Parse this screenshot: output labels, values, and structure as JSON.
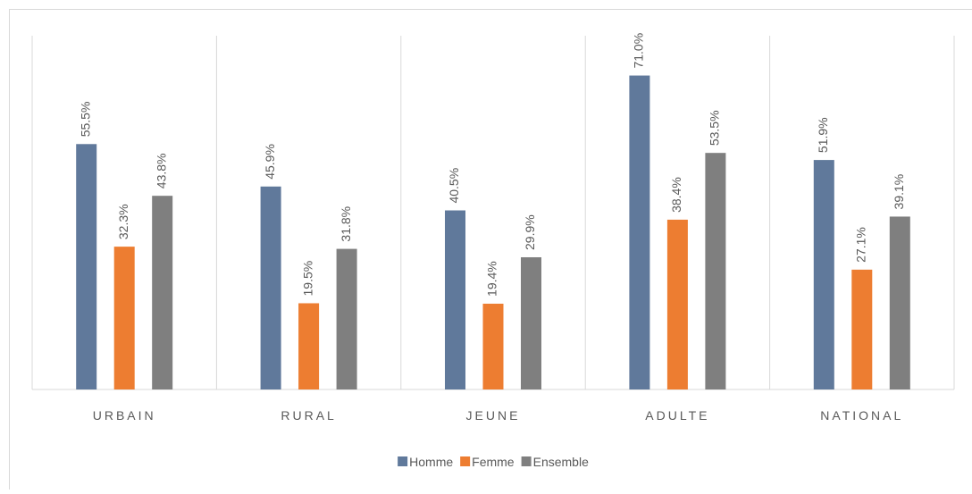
{
  "chart_data": {
    "type": "bar",
    "categories": [
      "URBAIN",
      "RURAL",
      "JEUNE",
      "ADULTE",
      "NATIONAL"
    ],
    "series": [
      {
        "name": "Homme",
        "color": "#60799b",
        "values": [
          55.5,
          45.9,
          40.5,
          71.0,
          51.9
        ],
        "value_labels": [
          "55.5%",
          "45.9%",
          "40.5%",
          "71.0%",
          "51.9%"
        ]
      },
      {
        "name": "Femme",
        "color": "#ed7d31",
        "values": [
          32.3,
          19.5,
          19.4,
          38.4,
          27.1
        ],
        "value_labels": [
          "32.3%",
          "19.5%",
          "19.4%",
          "38.4%",
          "27.1%"
        ]
      },
      {
        "name": "Ensemble",
        "color": "#7f7f7f",
        "values": [
          43.8,
          31.8,
          29.9,
          53.5,
          39.1
        ],
        "value_labels": [
          "43.8%",
          "31.8%",
          "29.9%",
          "53.5%",
          "39.1%"
        ]
      }
    ],
    "ylim": [
      0,
      80
    ],
    "legend": "bottom"
  }
}
